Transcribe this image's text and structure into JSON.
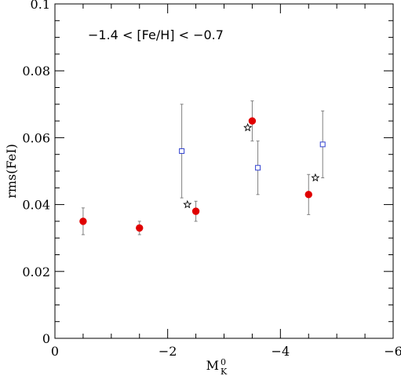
{
  "chart_data": {
    "type": "scatter",
    "xlabel_main": "M",
    "xlabel_sup": "0",
    "xlabel_sub": "K",
    "ylabel": "rms(FeI)",
    "annotation": "−1.4  <  [Fe/H]  <  −0.7",
    "xlim": [
      0,
      -6
    ],
    "ylim": [
      0,
      0.1
    ],
    "x_ticks": [
      0,
      -2,
      -4,
      -6
    ],
    "x_tick_labels": [
      "0",
      "−2",
      "−4",
      "−6"
    ],
    "y_ticks": [
      0,
      0.02,
      0.04,
      0.06,
      0.08,
      0.1
    ],
    "y_tick_labels": [
      "0",
      "0.02",
      "0.04",
      "0.06",
      "0.08",
      "0.1"
    ],
    "grid": false,
    "series": [
      {
        "marker": "filled-circle",
        "color": "#e00000",
        "points": [
          {
            "x": -0.5,
            "y": 0.035,
            "err": 0.004
          },
          {
            "x": -1.5,
            "y": 0.033,
            "err": 0.002
          },
          {
            "x": -2.5,
            "y": 0.038,
            "err": 0.003
          },
          {
            "x": -3.5,
            "y": 0.065,
            "err": 0.006
          },
          {
            "x": -4.5,
            "y": 0.043,
            "err": 0.006
          }
        ]
      },
      {
        "marker": "open-square",
        "color": "#3040d0",
        "points": [
          {
            "x": -2.25,
            "y": 0.056,
            "err": 0.014
          },
          {
            "x": -3.6,
            "y": 0.051,
            "err": 0.008
          },
          {
            "x": -4.75,
            "y": 0.058,
            "err": 0.01
          }
        ]
      },
      {
        "marker": "open-star",
        "color": "#000000",
        "points": [
          {
            "x": -2.35,
            "y": 0.04
          },
          {
            "x": -3.42,
            "y": 0.063
          },
          {
            "x": -4.62,
            "y": 0.048
          }
        ]
      }
    ]
  }
}
